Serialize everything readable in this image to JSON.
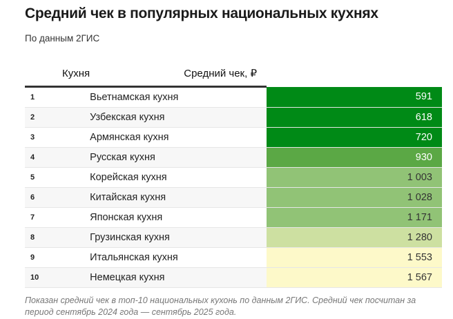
{
  "title": "Средний чек в популярных национальных кухнях",
  "subtitle": "По данным 2ГИС",
  "footnote": "Показан средний чек в топ-10 национальных кухонь по данным 2ГИС. Средний чек посчитан за период сентябрь 2024 года — сентябрь 2025 года.",
  "chart_data": {
    "type": "table",
    "columns": [
      "",
      "Кухня",
      "Средний чек, ₽"
    ],
    "rows": [
      {
        "rank": "1",
        "name": "Вьетнамская кухня",
        "value": 591,
        "label": "591",
        "color": "#008a16"
      },
      {
        "rank": "2",
        "name": "Узбекская кухня",
        "value": 618,
        "label": "618",
        "color": "#008a16"
      },
      {
        "rank": "3",
        "name": "Армянская кухня",
        "value": 720,
        "label": "720",
        "color": "#008a16"
      },
      {
        "rank": "4",
        "name": "Русская кухня",
        "value": 930,
        "label": "930",
        "color": "#5ba845"
      },
      {
        "rank": "5",
        "name": "Корейская кухня",
        "value": 1003,
        "label": "1 003",
        "color": "#91c376"
      },
      {
        "rank": "6",
        "name": "Китайская кухня",
        "value": 1028,
        "label": "1 028",
        "color": "#91c376"
      },
      {
        "rank": "7",
        "name": "Японская кухня",
        "value": 1171,
        "label": "1 171",
        "color": "#91c376"
      },
      {
        "rank": "8",
        "name": "Грузинская кухня",
        "value": 1280,
        "label": "1 280",
        "color": "#cde0a1"
      },
      {
        "rank": "9",
        "name": "Итальянская кухня",
        "value": 1553,
        "label": "1 553",
        "color": "#fdf9c9"
      },
      {
        "rank": "10",
        "name": "Немецкая кухня",
        "value": 1567,
        "label": "1 567",
        "color": "#fdf9c9"
      }
    ]
  }
}
